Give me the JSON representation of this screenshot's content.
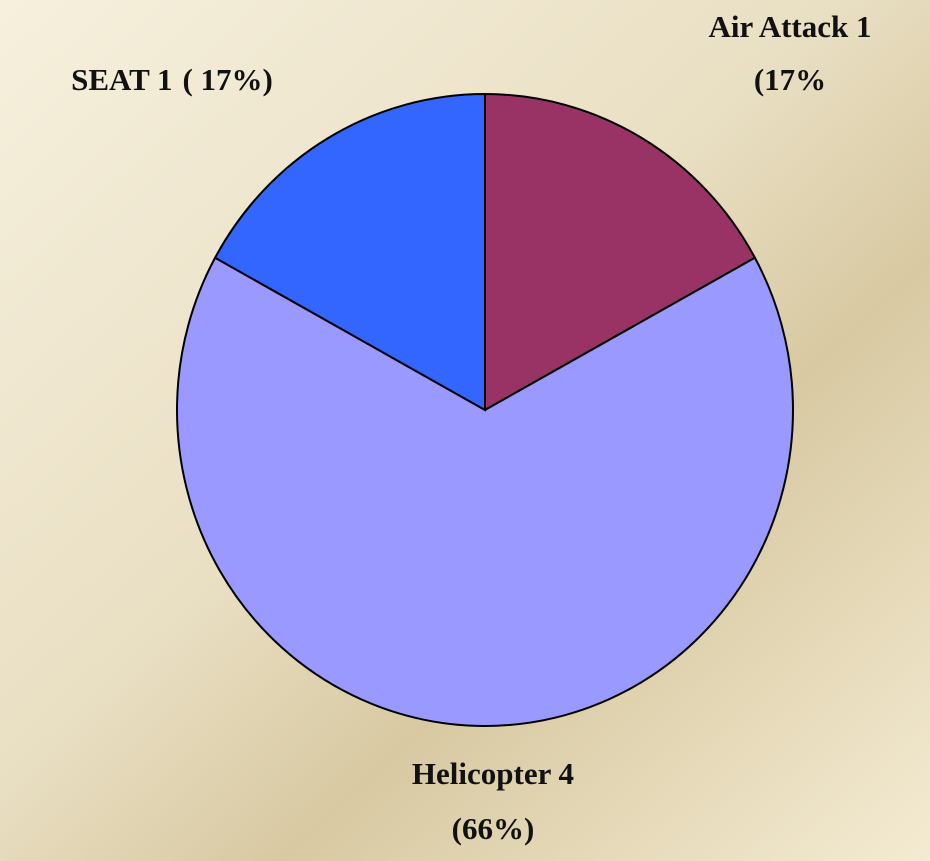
{
  "chart_data": {
    "type": "pie",
    "categories": [
      "Air Attack 1",
      "Helicopter 4",
      "SEAT 1"
    ],
    "values": [
      17,
      66,
      17
    ],
    "value_labels": [
      "(17%",
      "(66%)",
      "( 17%)"
    ],
    "colors": [
      "#993366",
      "#9999ff",
      "#3366ff"
    ]
  }
}
